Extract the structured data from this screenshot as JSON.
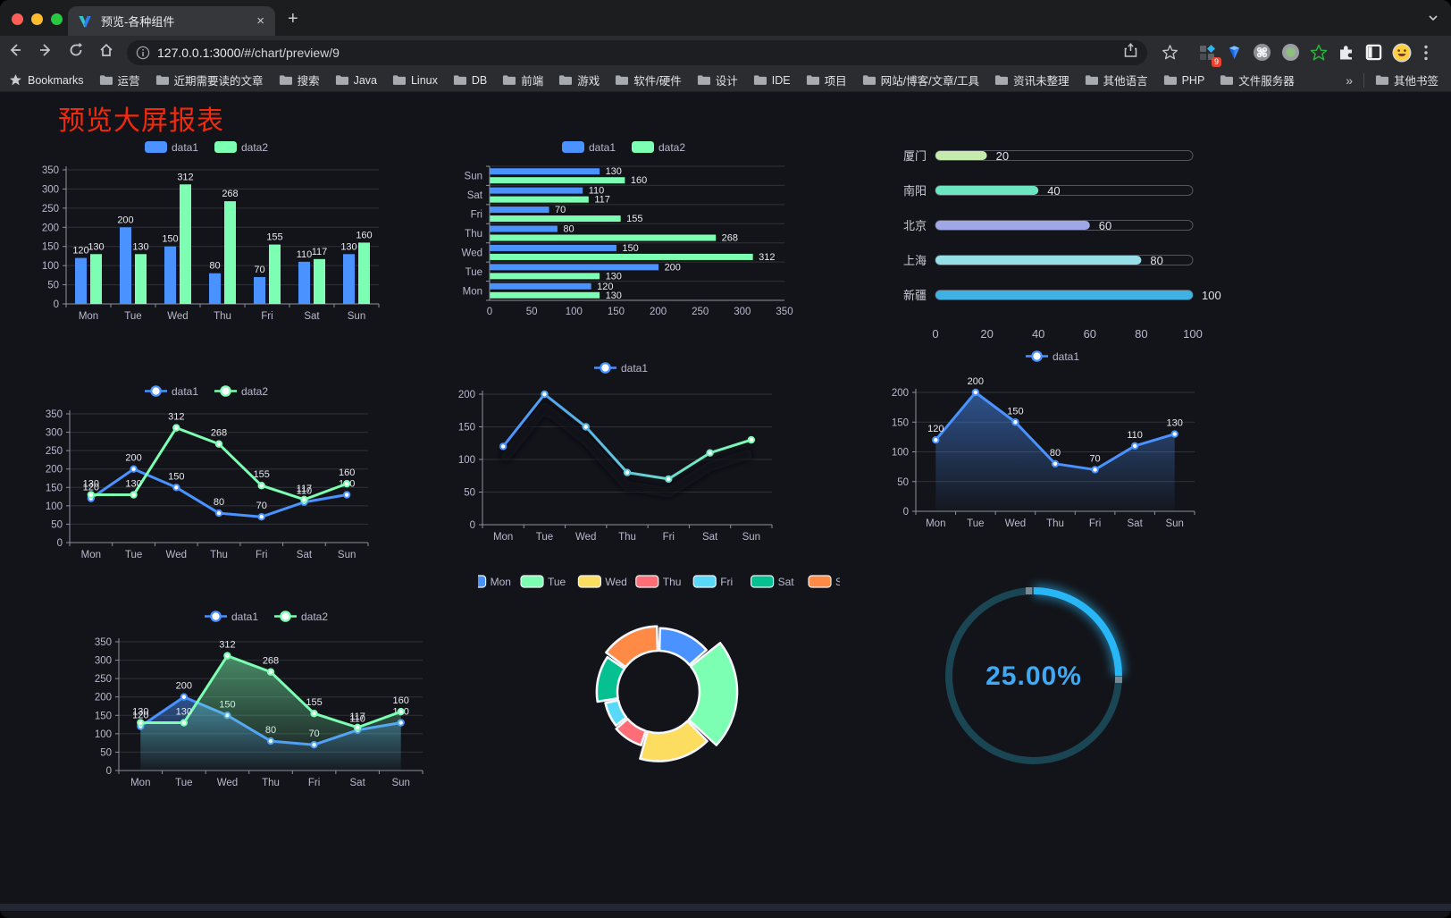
{
  "browser": {
    "tab": {
      "title": "预览-各种组件",
      "close_glyph": "×",
      "new_tab_glyph": "+"
    },
    "url": {
      "host": "127.0.0.1:3000",
      "path": "/#/chart/preview/9"
    },
    "bookmarks_label": "Bookmarks",
    "bookmarks": [
      "运营",
      "近期需要读的文章",
      "搜索",
      "Java",
      "Linux",
      "DB",
      "前端",
      "游戏",
      "软件/硬件",
      "设计",
      "IDE",
      "项目",
      "网站/博客/文章/工具",
      "资讯未整理",
      "其他语言",
      "PHP",
      "文件服务器"
    ],
    "bookmarks_overflow_glyph": "»",
    "other_bookmarks_label": "其他书签",
    "extension_badge": "9"
  },
  "page": {
    "title": "预览大屏报表",
    "title_color": "#f2290c"
  },
  "theme": {
    "axis_text": "#B9B8CE",
    "value_label": "#E8E9EF",
    "grid_line": "rgba(185,184,206,0.18)",
    "axis_line": "#8d92a0"
  },
  "chart_data": [
    {
      "id": "grouped-bar",
      "type": "bar",
      "categories": [
        "Mon",
        "Tue",
        "Wed",
        "Thu",
        "Fri",
        "Sat",
        "Sun"
      ],
      "series": [
        {
          "name": "data1",
          "color": "#4992ff",
          "values": [
            120,
            200,
            150,
            80,
            70,
            110,
            130
          ]
        },
        {
          "name": "data2",
          "color": "#7cffb2",
          "values": [
            130,
            130,
            312,
            268,
            155,
            117,
            160
          ]
        }
      ],
      "ylim": [
        0,
        350
      ],
      "yticks": [
        0,
        50,
        100,
        150,
        200,
        250,
        300,
        350
      ],
      "legend_position": "top",
      "grid": true
    },
    {
      "id": "horizontal-bar",
      "type": "hbar",
      "categories": [
        "Mon",
        "Tue",
        "Wed",
        "Thu",
        "Fri",
        "Sat",
        "Sun"
      ],
      "series": [
        {
          "name": "data1",
          "color": "#4992ff",
          "values": [
            120,
            200,
            150,
            80,
            70,
            110,
            130
          ]
        },
        {
          "name": "data2",
          "color": "#7cffb2",
          "values": [
            130,
            130,
            312,
            268,
            155,
            117,
            160
          ]
        }
      ],
      "xlim": [
        0,
        350
      ],
      "xticks": [
        0,
        50,
        100,
        150,
        200,
        250,
        300,
        350
      ],
      "legend_position": "top",
      "grid": true
    },
    {
      "id": "city-progress",
      "type": "progress",
      "categories": [
        "厦门",
        "南阳",
        "北京",
        "上海",
        "新疆"
      ],
      "values": [
        20,
        40,
        60,
        80,
        100
      ],
      "colors": [
        "#c4ebad",
        "#6be6c1",
        "#a0a7e6",
        "#96dee8",
        "#3fb1e3"
      ],
      "xlim": [
        0,
        100
      ],
      "xticks": [
        0,
        20,
        40,
        60,
        80,
        100
      ]
    },
    {
      "id": "two-line",
      "type": "line",
      "categories": [
        "Mon",
        "Tue",
        "Wed",
        "Thu",
        "Fri",
        "Sat",
        "Sun"
      ],
      "series": [
        {
          "name": "data1",
          "color": "#4992ff",
          "values": [
            120,
            200,
            150,
            80,
            70,
            110,
            130
          ],
          "labels": true
        },
        {
          "name": "data2",
          "color": "#7cffb2",
          "values": [
            130,
            130,
            312,
            268,
            155,
            117,
            160
          ],
          "labels": true
        }
      ],
      "ylim": [
        0,
        350
      ],
      "yticks": [
        0,
        50,
        100,
        150,
        200,
        250,
        300,
        350
      ],
      "legend_position": "top",
      "grid": true
    },
    {
      "id": "gradient-line",
      "type": "line",
      "categories": [
        "Mon",
        "Tue",
        "Wed",
        "Thu",
        "Fri",
        "Sat",
        "Sun"
      ],
      "series": [
        {
          "name": "data1",
          "gradient": [
            "#4992ff",
            "#7cffb2"
          ],
          "values": [
            120,
            200,
            150,
            80,
            70,
            110,
            130
          ],
          "labels": false,
          "shadow": true
        }
      ],
      "ylim": [
        0,
        200
      ],
      "yticks": [
        0,
        50,
        100,
        150,
        200
      ],
      "legend_position": "top",
      "grid": true
    },
    {
      "id": "area-line",
      "type": "line",
      "categories": [
        "Mon",
        "Tue",
        "Wed",
        "Thu",
        "Fri",
        "Sat",
        "Sun"
      ],
      "series": [
        {
          "name": "data1",
          "color": "#4992ff",
          "values": [
            120,
            200,
            150,
            80,
            70,
            110,
            130
          ],
          "labels": true,
          "area": true
        }
      ],
      "ylim": [
        0,
        200
      ],
      "yticks": [
        0,
        50,
        100,
        150,
        200
      ],
      "legend_position": "top",
      "grid": true
    },
    {
      "id": "two-area-line",
      "type": "line",
      "categories": [
        "Mon",
        "Tue",
        "Wed",
        "Thu",
        "Fri",
        "Sat",
        "Sun"
      ],
      "series": [
        {
          "name": "data1",
          "color": "#4992ff",
          "values": [
            120,
            200,
            150,
            80,
            70,
            110,
            130
          ],
          "labels": true,
          "area": true
        },
        {
          "name": "data2",
          "color": "#7cffb2",
          "values": [
            130,
            130,
            312,
            268,
            155,
            117,
            160
          ],
          "labels": true,
          "area": true
        }
      ],
      "ylim": [
        0,
        350
      ],
      "yticks": [
        0,
        50,
        100,
        150,
        200,
        250,
        300,
        350
      ],
      "legend_position": "top",
      "grid": true
    },
    {
      "id": "rose-donut",
      "type": "pie",
      "rose": true,
      "donut": true,
      "categories": [
        "Mon",
        "Tue",
        "Wed",
        "Thu",
        "Fri",
        "Sat",
        "Sun"
      ],
      "values": [
        120,
        200,
        150,
        80,
        70,
        110,
        130
      ],
      "colors": [
        "#4992ff",
        "#7cffb2",
        "#fddd60",
        "#ff6e76",
        "#58d9f9",
        "#05c091",
        "#ff8a45"
      ],
      "legend_position": "top"
    },
    {
      "id": "gauge",
      "type": "gauge",
      "value": 25,
      "max": 100,
      "label": "25.00%",
      "color": "#29b6f6",
      "track": "#1a4553",
      "text_color": "#3fa9f5"
    }
  ]
}
